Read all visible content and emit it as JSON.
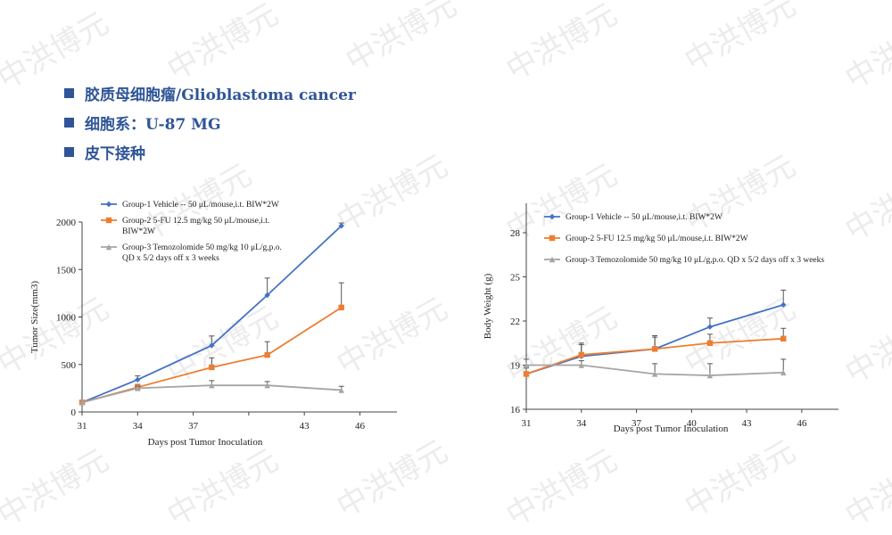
{
  "watermark": "中洪博元",
  "bullets": [
    {
      "icon": "square-bullet-icon",
      "label": "胶质母细胞瘤/Glioblastoma cancer"
    },
    {
      "icon": "square-bullet-icon",
      "label": "细胞系：U-87 MG"
    },
    {
      "icon": "square-bullet-icon",
      "label": "皮下接种"
    }
  ],
  "colors": {
    "bullet": "#2f5597",
    "group1": "#4472c4",
    "group2": "#ed7d31",
    "group3": "#a5a5a5"
  },
  "chart_data": [
    {
      "type": "line",
      "title": "",
      "xlabel": "Days post Tumor Inoculation",
      "ylabel": "Tumor Size(mm3)",
      "xlim": [
        31,
        48
      ],
      "ylim": [
        0,
        2000
      ],
      "xticks": [
        31,
        34,
        37,
        40,
        43,
        46
      ],
      "xtick_labels": [
        "31",
        "34",
        "37",
        "",
        "43",
        "46"
      ],
      "yticks": [
        0,
        500,
        1000,
        1500,
        2000
      ],
      "ytick_labels": [
        "0",
        "500",
        "1000",
        "1500",
        "2000"
      ],
      "grid": false,
      "legend": "top-left",
      "series": [
        {
          "name": "Group-1 Vehicle -- 50 μL/mouse,i.t. BIW*2W",
          "marker": "diamond",
          "color": "#4472c4",
          "x": [
            31,
            34,
            38,
            41,
            45
          ],
          "y": [
            100,
            340,
            700,
            1230,
            1960
          ],
          "err": [
            0,
            40,
            100,
            180,
            30
          ]
        },
        {
          "name": "Group-2 5-FU 12.5 mg/kg 50 μL/mouse,i.t. BIW*2W",
          "legend_lines": [
            "Group-2 5-FU 12.5 mg/kg 50 μL/mouse,i.t.",
            "BIW*2W"
          ],
          "marker": "square",
          "color": "#ed7d31",
          "x": [
            31,
            34,
            38,
            41,
            45
          ],
          "y": [
            100,
            260,
            470,
            600,
            1100
          ],
          "err": [
            0,
            30,
            100,
            140,
            260
          ]
        },
        {
          "name": "Group-3 Temozolomide 50 mg/kg 10 μL/g,p.o. QD x 5/2 days off x 3 weeks",
          "legend_lines": [
            "Group-3 Temozolomide 50 mg/kg 10 μL/g,p.o.",
            "QD x 5/2 days off x 3 weeks"
          ],
          "marker": "triangle",
          "color": "#a5a5a5",
          "x": [
            31,
            34,
            38,
            41,
            45
          ],
          "y": [
            100,
            250,
            280,
            280,
            230
          ],
          "err": [
            0,
            20,
            50,
            40,
            40
          ]
        }
      ]
    },
    {
      "type": "line",
      "title": "",
      "xlabel": "Days post Tumor Inoculation",
      "ylabel": "Body Weight (g)",
      "xlim": [
        31,
        48
      ],
      "ylim": [
        16,
        30
      ],
      "xticks": [
        31,
        34,
        37,
        40,
        43,
        46
      ],
      "xtick_labels": [
        "31",
        "34",
        "37",
        "40",
        "43",
        "46"
      ],
      "yticks": [
        16,
        19,
        22,
        25,
        28
      ],
      "ytick_labels": [
        "16",
        "19",
        "22",
        "25",
        "28"
      ],
      "grid": false,
      "legend": "top-left",
      "series": [
        {
          "name": "Group-1 Vehicle -- 50 μL/mouse,i.t. BIW*2W",
          "marker": "diamond",
          "color": "#4472c4",
          "x": [
            31,
            34,
            38,
            41,
            45
          ],
          "y": [
            18.4,
            19.6,
            20.1,
            21.6,
            23.1
          ],
          "err": [
            0.5,
            0.9,
            0.9,
            0.6,
            1.0
          ]
        },
        {
          "name": "Group-2 5-FU 12.5 mg/kg 50 μL/mouse,i.t. BIW*2W",
          "marker": "square",
          "color": "#ed7d31",
          "x": [
            31,
            34,
            38,
            41,
            45
          ],
          "y": [
            18.4,
            19.7,
            20.1,
            20.5,
            20.8
          ],
          "err": [
            0.4,
            0.7,
            0.8,
            0.6,
            0.7
          ]
        },
        {
          "name": "Group-3 Temozolomide 50 mg/kg 10 μL/g,p.o. QD x 5/2 days off x 3 weeks",
          "marker": "triangle",
          "color": "#a5a5a5",
          "x": [
            31,
            34,
            38,
            41,
            45
          ],
          "y": [
            19.0,
            19.0,
            18.4,
            18.3,
            18.5
          ],
          "err": [
            0.4,
            0.3,
            0.7,
            0.8,
            0.9
          ]
        }
      ]
    }
  ]
}
